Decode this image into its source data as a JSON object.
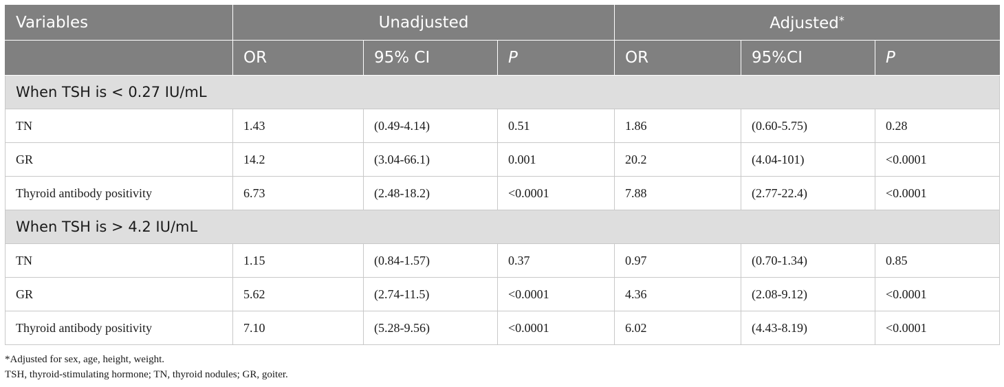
{
  "header": {
    "variables": "Variables",
    "unadjusted": "Unadjusted",
    "adjusted": "Adjusted",
    "adjusted_mark": "*",
    "sub": [
      "OR",
      "95% CI",
      "P",
      "OR",
      "95%CI",
      "P"
    ]
  },
  "sections": [
    {
      "title": "When TSH is < 0.27 IU/mL",
      "rows": [
        [
          "TN",
          "1.43",
          "(0.49-4.14)",
          "0.51",
          "1.86",
          "(0.60-5.75)",
          "0.28"
        ],
        [
          "GR",
          "14.2",
          "(3.04-66.1)",
          "0.001",
          "20.2",
          "(4.04-101)",
          "<0.0001"
        ],
        [
          "Thyroid antibody positivity",
          "6.73",
          "(2.48-18.2)",
          "<0.0001",
          "7.88",
          "(2.77-22.4)",
          "<0.0001"
        ]
      ]
    },
    {
      "title": "When TSH is > 4.2 IU/mL",
      "rows": [
        [
          "TN",
          "1.15",
          "(0.84-1.57)",
          "0.37",
          "0.97",
          "(0.70-1.34)",
          "0.85"
        ],
        [
          "GR",
          "5.62",
          "(2.74-11.5)",
          "<0.0001",
          "4.36",
          "(2.08-9.12)",
          "<0.0001"
        ],
        [
          "Thyroid antibody positivity",
          "7.10",
          "(5.28-9.56)",
          "<0.0001",
          "6.02",
          "(4.43-8.19)",
          "<0.0001"
        ]
      ]
    }
  ],
  "footnotes": [
    "*Adjusted for sex, age, height, weight.",
    "TSH, thyroid-stimulating hormone; TN, thyroid nodules; GR, goiter."
  ],
  "colors": {
    "header_bg": "#808080",
    "section_bg": "#dedede",
    "grid": "#c8c8c8"
  }
}
